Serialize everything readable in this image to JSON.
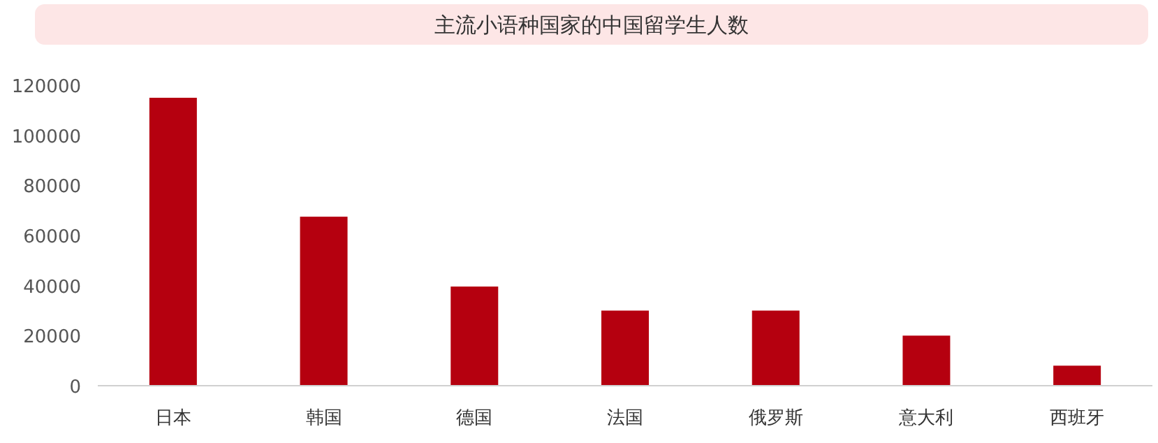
{
  "chart_data": {
    "type": "bar",
    "title": "主流小语种国家的中国留学生人数",
    "categories": [
      "日本",
      "韩国",
      "德国",
      "法国",
      "俄罗斯",
      "意大利",
      "西班牙"
    ],
    "values": [
      115000,
      67500,
      39600,
      30000,
      30000,
      20000,
      8000
    ],
    "color": "#b5000f",
    "ylim": [
      0,
      120000
    ],
    "yticks": [
      0,
      20000,
      40000,
      60000,
      80000,
      100000,
      120000
    ],
    "grid": false
  }
}
